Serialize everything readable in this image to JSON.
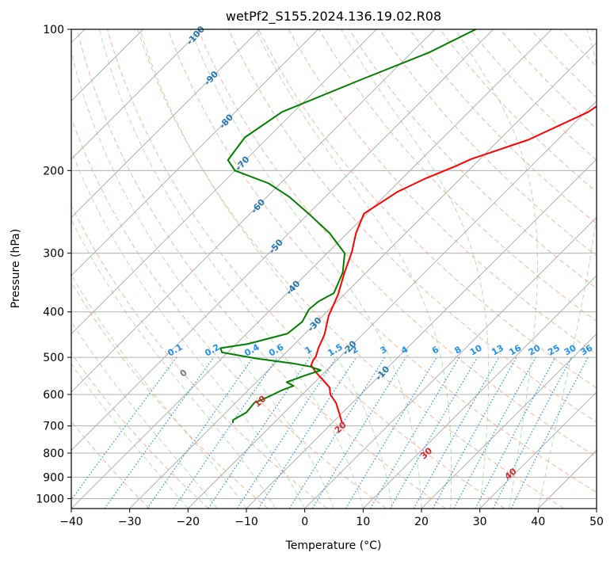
{
  "chart_data": {
    "type": "line",
    "subtype": "skew-t log-p sounding",
    "title": "wetPf2_S155.2024.136.19.02.R08",
    "xlabel": "Temperature (°C)",
    "ylabel": "Pressure (hPa)",
    "xlim": [
      -40,
      50
    ],
    "ylim": [
      1050,
      100
    ],
    "y_scale": "log",
    "x_ticks": [
      "−40",
      "−30",
      "−20",
      "−10",
      "0",
      "10",
      "20",
      "30",
      "40",
      "50"
    ],
    "x_tick_values": [
      -40,
      -30,
      -20,
      -10,
      0,
      10,
      20,
      30,
      40,
      50
    ],
    "y_ticks": [
      "100",
      "200",
      "300",
      "400",
      "500",
      "600",
      "700",
      "800",
      "900",
      "1000"
    ],
    "y_tick_values": [
      100,
      200,
      300,
      400,
      500,
      600,
      700,
      800,
      900,
      1000
    ],
    "grid": true,
    "colors": {
      "temperature": "#ff0000",
      "dewpoint": "#008000",
      "dry_adiabat": "#f4a582",
      "moist_adiabat": "#7fbf7b",
      "mixing_ratio": "#1f8ff0",
      "isotherm_label": "#1f77b4",
      "grid": "#b0b0b0"
    },
    "series": [
      {
        "role": "temperature",
        "color": "#ff0000",
        "points": [
          [
            -15,
            100
          ],
          [
            -15.4,
            107
          ],
          [
            -16.2,
            117
          ],
          [
            -17.5,
            132
          ],
          [
            -19.5,
            150
          ],
          [
            -25,
            172
          ],
          [
            -31.5,
            189
          ],
          [
            -33,
            196
          ],
          [
            -36,
            208
          ],
          [
            -38.5,
            222
          ],
          [
            -40.5,
            247
          ],
          [
            -38.5,
            272
          ],
          [
            -36,
            298
          ],
          [
            -33.7,
            330
          ],
          [
            -31,
            368
          ],
          [
            -29,
            408
          ],
          [
            -26.5,
            447
          ],
          [
            -25.2,
            478
          ],
          [
            -24.2,
            498
          ],
          [
            -24,
            508
          ],
          [
            -23.5,
            520
          ],
          [
            -21.5,
            538
          ],
          [
            -18.8,
            560
          ],
          [
            -16.5,
            580
          ],
          [
            -15.2,
            600
          ],
          [
            -12.8,
            625
          ],
          [
            -10.3,
            660
          ],
          [
            -8.3,
            690
          ]
        ]
      },
      {
        "role": "dewpoint",
        "color": "#008000",
        "points": [
          [
            -53,
            100
          ],
          [
            -57,
            112
          ],
          [
            -64,
            128
          ],
          [
            -72,
            150
          ],
          [
            -74,
            170
          ],
          [
            -73,
            190
          ],
          [
            -70,
            200
          ],
          [
            -62,
            213
          ],
          [
            -56,
            228
          ],
          [
            -50,
            247
          ],
          [
            -43,
            272
          ],
          [
            -37,
            300
          ],
          [
            -34,
            330
          ],
          [
            -32,
            365
          ],
          [
            -33.2,
            380
          ],
          [
            -33.5,
            395
          ],
          [
            -32.5,
            420
          ],
          [
            -33,
            445
          ],
          [
            -38,
            468
          ],
          [
            -42,
            478
          ],
          [
            -41,
            488
          ],
          [
            -34,
            503
          ],
          [
            -27,
            515
          ],
          [
            -23.5,
            523
          ],
          [
            -21,
            533
          ],
          [
            -23,
            548
          ],
          [
            -24.8,
            565
          ],
          [
            -23,
            575
          ],
          [
            -24.2,
            587
          ],
          [
            -25,
            600
          ],
          [
            -26,
            615
          ],
          [
            -26.8,
            625
          ],
          [
            -26.5,
            655
          ],
          [
            -27.5,
            680
          ],
          [
            -27,
            690
          ]
        ]
      }
    ],
    "isotherm_labels": [
      "-100",
      "-90",
      "-80",
      "-70",
      "-60",
      "-50",
      "-40",
      "-30",
      "-20",
      "-10"
    ],
    "isotherm_label_values": [
      -100,
      -90,
      -80,
      -70,
      -60,
      -50,
      -40,
      -30,
      -20,
      -10
    ],
    "isotherm_label_pressures": [
      103,
      127,
      157,
      193,
      238,
      290,
      355,
      425,
      477,
      540
    ],
    "mixing_ratio_labels": [
      "0.1",
      "0.2",
      "0.4",
      "0.6",
      "1",
      "1.5",
      "2",
      "3",
      "4",
      "6",
      "8",
      "10",
      "13",
      "16",
      "20",
      "25",
      "30",
      "36"
    ],
    "mixing_ratio_values": [
      0.1,
      0.2,
      0.4,
      0.6,
      1,
      1.5,
      2,
      3,
      4,
      6,
      8,
      10,
      13,
      16,
      20,
      25,
      30,
      36
    ],
    "dry_adiabat_labels": [
      "0",
      "10",
      "20",
      "30",
      "40"
    ],
    "dry_adiabat_values": [
      0,
      10,
      20,
      30,
      40
    ],
    "dry_adiabat_label_pressures": [
      540,
      620,
      705,
      800,
      885
    ]
  }
}
